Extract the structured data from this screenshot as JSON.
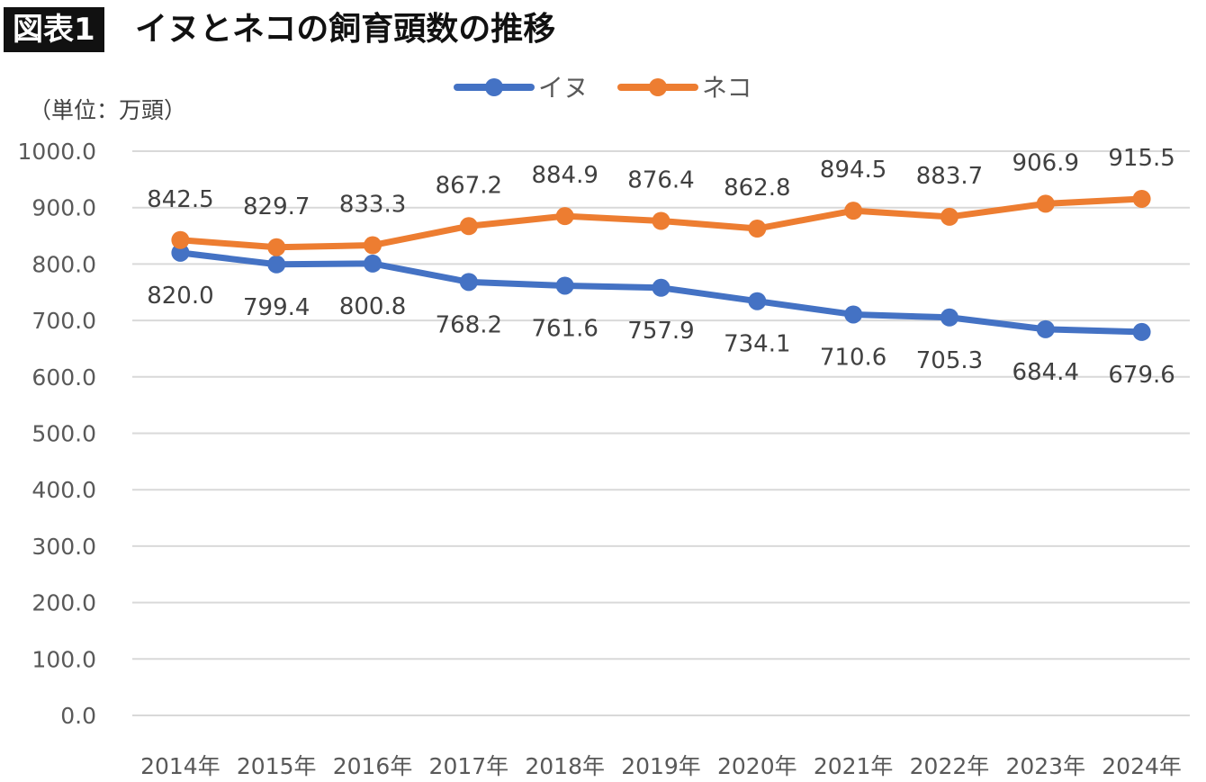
{
  "figure": {
    "badge": "図表1",
    "title": "イヌとネコの飼育頭数の推移",
    "unit_label": "（単位：万頭）"
  },
  "colors": {
    "dog": "#4472C4",
    "cat": "#ED7D31",
    "grid": "#D9D9D9",
    "axis_text": "#595959",
    "label_text": "#404040"
  },
  "chart_data": {
    "type": "line",
    "categories": [
      "2014年",
      "2015年",
      "2016年",
      "2017年",
      "2018年",
      "2019年",
      "2020年",
      "2021年",
      "2022年",
      "2023年",
      "2024年"
    ],
    "ylim": [
      0,
      1000
    ],
    "ytick_step": 100,
    "yticks": [
      "0.0",
      "100.0",
      "200.0",
      "300.0",
      "400.0",
      "500.0",
      "600.0",
      "700.0",
      "800.0",
      "900.0",
      "1000.0"
    ],
    "grid": true,
    "legend_position": "top-center",
    "series": [
      {
        "name": "イヌ",
        "color": "#4472C4",
        "label_side": "below",
        "values": [
          820.0,
          799.4,
          800.8,
          768.2,
          761.6,
          757.9,
          734.1,
          710.6,
          705.3,
          684.4,
          679.6
        ],
        "labels": [
          "820.0",
          "799.4",
          "800.8",
          "768.2",
          "761.6",
          "757.9",
          "734.1",
          "710.6",
          "705.3",
          "684.4",
          "679.6"
        ]
      },
      {
        "name": "ネコ",
        "color": "#ED7D31",
        "label_side": "above",
        "values": [
          842.5,
          829.7,
          833.3,
          867.2,
          884.9,
          876.4,
          862.8,
          894.5,
          883.7,
          906.9,
          915.5
        ],
        "labels": [
          "842.5",
          "829.7",
          "833.3",
          "867.2",
          "884.9",
          "876.4",
          "862.8",
          "894.5",
          "883.7",
          "906.9",
          "915.5"
        ]
      }
    ]
  }
}
